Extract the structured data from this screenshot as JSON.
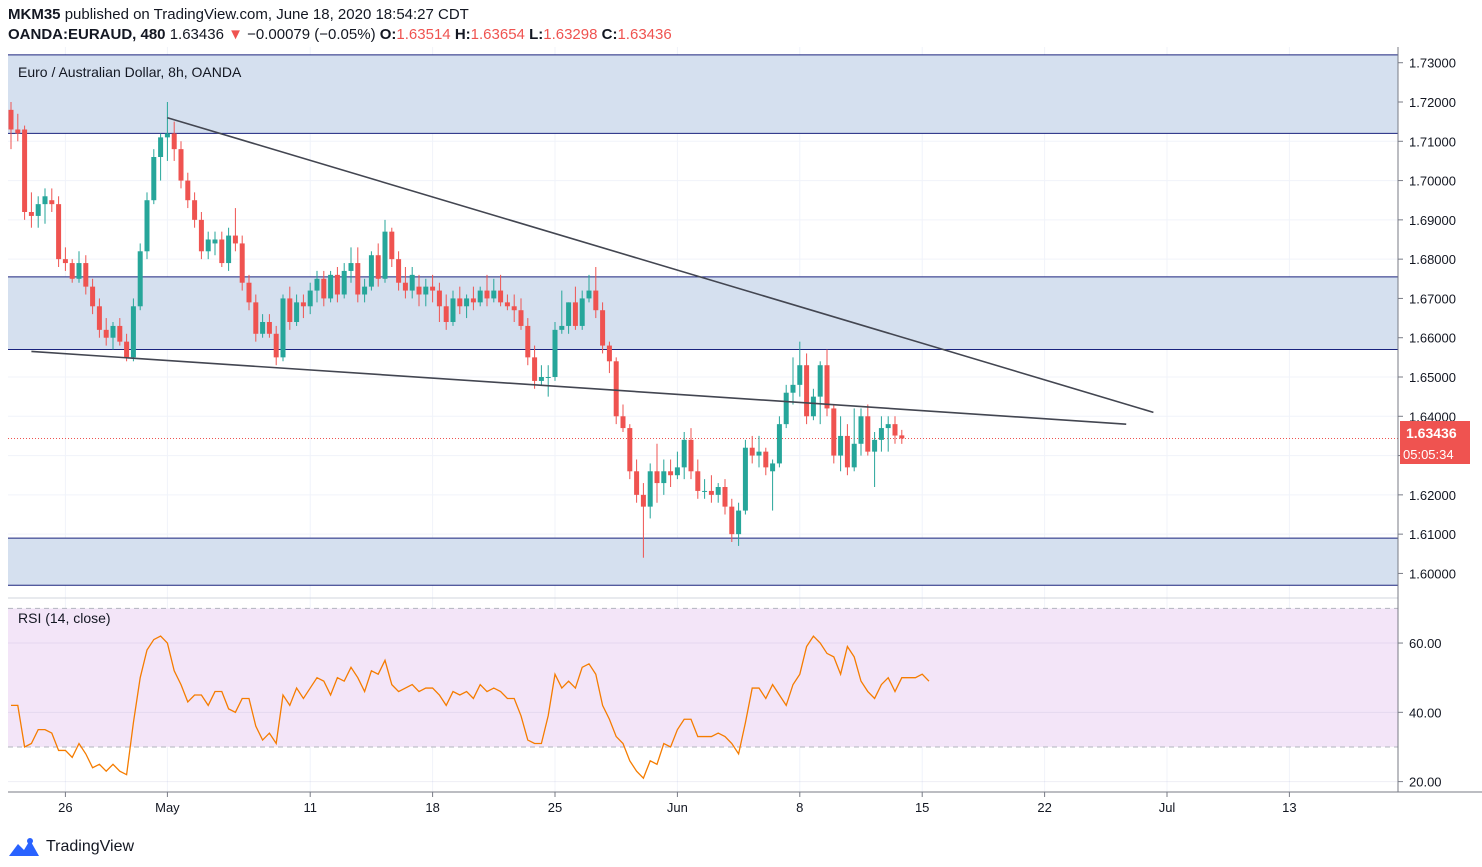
{
  "header": {
    "author": "MKM35",
    "published_text": "published on TradingView.com, June 18, 2020 18:54:27 CDT",
    "symbol": "OANDA:EURAUD, 480",
    "last": "1.63436",
    "change_arrow": "▼",
    "change": "−0.00079 (−0.05%)",
    "o_label": "O:",
    "o": "1.63514",
    "h_label": "H:",
    "h": "1.63654",
    "l_label": "L:",
    "l": "1.63298",
    "c_label": "C:",
    "c": "1.63436"
  },
  "price_pane": {
    "legend": "Euro / Australian Dollar, 8h, OANDA",
    "price_badge": "1.63436",
    "countdown_badge": "05:05:34"
  },
  "rsi_pane": {
    "legend": "RSI (14, close)"
  },
  "brand": {
    "name": "TradingView"
  },
  "colors": {
    "up": "#26a69a",
    "down": "#ef5350",
    "zone_fill": "#d5e0ef",
    "zone_line": "#1a237e",
    "trendline": "#434651",
    "rsi_line": "#f57c00",
    "rsi_band": "#f3e5f8",
    "grid": "#f0f3fa"
  },
  "chart_data": [
    {
      "type": "candlestick",
      "title": "Euro / Australian Dollar, 8h, OANDA",
      "ylim": [
        1.594,
        1.734
      ],
      "y_ticks": [
        "1.60000",
        "1.61000",
        "1.62000",
        "1.63000",
        "1.64000",
        "1.65000",
        "1.66000",
        "1.67000",
        "1.68000",
        "1.69000",
        "1.70000",
        "1.71000",
        "1.72000",
        "1.73000"
      ],
      "x_ticks": [
        {
          "bar": 8,
          "label": "26"
        },
        {
          "bar": 23,
          "label": "May"
        },
        {
          "bar": 44,
          "label": "11"
        },
        {
          "bar": 62,
          "label": "18"
        },
        {
          "bar": 80,
          "label": "25"
        },
        {
          "bar": 98,
          "label": "Jun"
        },
        {
          "bar": 116,
          "label": "8"
        },
        {
          "bar": 134,
          "label": "15"
        },
        {
          "bar": 152,
          "label": "22"
        },
        {
          "bar": 170,
          "label": "Jul"
        },
        {
          "bar": 188,
          "label": "13"
        }
      ],
      "last_price": 1.63436,
      "zones": [
        {
          "from": 1.712,
          "to": 1.732
        },
        {
          "from": 1.657,
          "to": 1.6755
        },
        {
          "from": 1.597,
          "to": 1.609
        }
      ],
      "trendlines": [
        {
          "from": [
            23,
            1.716
          ],
          "to": [
            168,
            1.641
          ]
        },
        {
          "from": [
            3,
            1.6565
          ],
          "to": [
            164,
            1.638
          ]
        }
      ],
      "candles": [
        [
          1.718,
          1.72,
          1.708,
          1.713
        ],
        [
          1.713,
          1.717,
          1.71,
          1.712
        ],
        [
          1.713,
          1.714,
          1.69,
          1.692
        ],
        [
          1.692,
          1.697,
          1.688,
          1.691
        ],
        [
          1.691,
          1.696,
          1.688,
          1.694
        ],
        [
          1.694,
          1.698,
          1.689,
          1.696
        ],
        [
          1.695,
          1.698,
          1.692,
          1.694
        ],
        [
          1.694,
          1.696,
          1.678,
          1.68
        ],
        [
          1.68,
          1.683,
          1.677,
          1.679
        ],
        [
          1.679,
          1.68,
          1.674,
          1.675
        ],
        [
          1.675,
          1.682,
          1.674,
          1.679
        ],
        [
          1.679,
          1.681,
          1.671,
          1.673
        ],
        [
          1.673,
          1.675,
          1.666,
          1.668
        ],
        [
          1.668,
          1.67,
          1.66,
          1.662
        ],
        [
          1.662,
          1.665,
          1.658,
          1.66
        ],
        [
          1.66,
          1.664,
          1.657,
          1.663
        ],
        [
          1.663,
          1.665,
          1.658,
          1.659
        ],
        [
          1.659,
          1.661,
          1.654,
          1.655
        ],
        [
          1.655,
          1.67,
          1.654,
          1.668
        ],
        [
          1.668,
          1.684,
          1.667,
          1.682
        ],
        [
          1.682,
          1.697,
          1.68,
          1.695
        ],
        [
          1.695,
          1.708,
          1.694,
          1.706
        ],
        [
          1.706,
          1.712,
          1.7,
          1.711
        ],
        [
          1.711,
          1.72,
          1.705,
          1.712
        ],
        [
          1.712,
          1.715,
          1.705,
          1.708
        ],
        [
          1.708,
          1.71,
          1.698,
          1.7
        ],
        [
          1.7,
          1.702,
          1.693,
          1.695
        ],
        [
          1.695,
          1.697,
          1.688,
          1.69
        ],
        [
          1.69,
          1.692,
          1.68,
          1.682
        ],
        [
          1.682,
          1.687,
          1.68,
          1.685
        ],
        [
          1.684,
          1.687,
          1.681,
          1.685
        ],
        [
          1.685,
          1.687,
          1.678,
          1.679
        ],
        [
          1.679,
          1.688,
          1.677,
          1.686
        ],
        [
          1.686,
          1.693,
          1.682,
          1.684
        ],
        [
          1.684,
          1.686,
          1.672,
          1.674
        ],
        [
          1.674,
          1.676,
          1.667,
          1.669
        ],
        [
          1.669,
          1.671,
          1.659,
          1.661
        ],
        [
          1.661,
          1.666,
          1.66,
          1.664
        ],
        [
          1.664,
          1.666,
          1.66,
          1.661
        ],
        [
          1.661,
          1.663,
          1.653,
          1.655
        ],
        [
          1.655,
          1.671,
          1.654,
          1.67
        ],
        [
          1.67,
          1.673,
          1.662,
          1.664
        ],
        [
          1.664,
          1.671,
          1.663,
          1.669
        ],
        [
          1.669,
          1.671,
          1.665,
          1.668
        ],
        [
          1.668,
          1.674,
          1.666,
          1.672
        ],
        [
          1.672,
          1.677,
          1.669,
          1.675
        ],
        [
          1.675,
          1.677,
          1.668,
          1.67
        ],
        [
          1.67,
          1.677,
          1.669,
          1.676
        ],
        [
          1.676,
          1.678,
          1.669,
          1.671
        ],
        [
          1.671,
          1.679,
          1.67,
          1.677
        ],
        [
          1.677,
          1.683,
          1.674,
          1.679
        ],
        [
          1.679,
          1.683,
          1.669,
          1.671
        ],
        [
          1.671,
          1.675,
          1.669,
          1.673
        ],
        [
          1.673,
          1.682,
          1.672,
          1.681
        ],
        [
          1.681,
          1.684,
          1.673,
          1.675
        ],
        [
          1.675,
          1.69,
          1.674,
          1.687
        ],
        [
          1.687,
          1.688,
          1.678,
          1.68
        ],
        [
          1.68,
          1.682,
          1.672,
          1.674
        ],
        [
          1.674,
          1.678,
          1.67,
          1.672
        ],
        [
          1.672,
          1.678,
          1.67,
          1.676
        ],
        [
          1.673,
          1.676,
          1.668,
          1.671
        ],
        [
          1.671,
          1.675,
          1.668,
          1.673
        ],
        [
          1.673,
          1.676,
          1.669,
          1.672
        ],
        [
          1.672,
          1.674,
          1.664,
          1.668
        ],
        [
          1.668,
          1.671,
          1.662,
          1.664
        ],
        [
          1.664,
          1.672,
          1.663,
          1.67
        ],
        [
          1.67,
          1.673,
          1.666,
          1.668
        ],
        [
          1.668,
          1.671,
          1.665,
          1.67
        ],
        [
          1.67,
          1.673,
          1.667,
          1.669
        ],
        [
          1.669,
          1.673,
          1.668,
          1.672
        ],
        [
          1.672,
          1.676,
          1.668,
          1.67
        ],
        [
          1.67,
          1.675,
          1.669,
          1.672
        ],
        [
          1.672,
          1.676,
          1.668,
          1.669
        ],
        [
          1.669,
          1.671,
          1.667,
          1.668
        ],
        [
          1.668,
          1.671,
          1.664,
          1.667
        ],
        [
          1.667,
          1.67,
          1.662,
          1.663
        ],
        [
          1.663,
          1.665,
          1.653,
          1.655
        ],
        [
          1.655,
          1.658,
          1.647,
          1.649
        ],
        [
          1.649,
          1.653,
          1.648,
          1.65
        ],
        [
          1.65,
          1.653,
          1.645,
          1.65
        ],
        [
          1.65,
          1.664,
          1.649,
          1.662
        ],
        [
          1.662,
          1.672,
          1.661,
          1.663
        ],
        [
          1.663,
          1.669,
          1.661,
          1.669
        ],
        [
          1.669,
          1.673,
          1.662,
          1.663
        ],
        [
          1.663,
          1.672,
          1.662,
          1.67
        ],
        [
          1.67,
          1.676,
          1.669,
          1.672
        ],
        [
          1.672,
          1.678,
          1.665,
          1.667
        ],
        [
          1.667,
          1.669,
          1.656,
          1.658
        ],
        [
          1.658,
          1.659,
          1.651,
          1.654
        ],
        [
          1.654,
          1.655,
          1.638,
          1.64
        ],
        [
          1.64,
          1.643,
          1.636,
          1.637
        ],
        [
          1.637,
          1.638,
          1.624,
          1.626
        ],
        [
          1.626,
          1.629,
          1.618,
          1.62
        ],
        [
          1.62,
          1.623,
          1.604,
          1.617
        ],
        [
          1.617,
          1.628,
          1.614,
          1.626
        ],
        [
          1.626,
          1.633,
          1.618,
          1.623
        ],
        [
          1.623,
          1.629,
          1.62,
          1.626
        ],
        [
          1.626,
          1.629,
          1.622,
          1.625
        ],
        [
          1.625,
          1.631,
          1.624,
          1.627
        ],
        [
          1.627,
          1.636,
          1.624,
          1.634
        ],
        [
          1.634,
          1.637,
          1.624,
          1.626
        ],
        [
          1.626,
          1.629,
          1.619,
          1.621
        ],
        [
          1.621,
          1.624,
          1.619,
          1.621
        ],
        [
          1.621,
          1.625,
          1.618,
          1.62
        ],
        [
          1.62,
          1.623,
          1.618,
          1.622
        ],
        [
          1.622,
          1.624,
          1.615,
          1.617
        ],
        [
          1.617,
          1.619,
          1.608,
          1.61
        ],
        [
          1.61,
          1.618,
          1.607,
          1.616
        ],
        [
          1.616,
          1.634,
          1.615,
          1.632
        ],
        [
          1.632,
          1.635,
          1.628,
          1.63
        ],
        [
          1.63,
          1.635,
          1.627,
          1.631
        ],
        [
          1.631,
          1.632,
          1.625,
          1.627
        ],
        [
          1.626,
          1.629,
          1.616,
          1.628
        ],
        [
          1.628,
          1.64,
          1.627,
          1.638
        ],
        [
          1.638,
          1.648,
          1.637,
          1.646
        ],
        [
          1.646,
          1.655,
          1.643,
          1.648
        ],
        [
          1.648,
          1.659,
          1.645,
          1.653
        ],
        [
          1.653,
          1.656,
          1.638,
          1.64
        ],
        [
          1.64,
          1.647,
          1.639,
          1.645
        ],
        [
          1.645,
          1.654,
          1.638,
          1.653
        ],
        [
          1.653,
          1.657,
          1.64,
          1.642
        ],
        [
          1.642,
          1.643,
          1.628,
          1.63
        ],
        [
          1.63,
          1.64,
          1.626,
          1.635
        ],
        [
          1.635,
          1.638,
          1.625,
          1.627
        ],
        [
          1.627,
          1.642,
          1.626,
          1.633
        ],
        [
          1.633,
          1.642,
          1.63,
          1.64
        ],
        [
          1.64,
          1.643,
          1.63,
          1.631
        ],
        [
          1.631,
          1.636,
          1.622,
          1.634
        ],
        [
          1.634,
          1.64,
          1.631,
          1.637
        ],
        [
          1.637,
          1.64,
          1.631,
          1.638
        ],
        [
          1.638,
          1.64,
          1.633,
          1.6351
        ],
        [
          1.63514,
          1.63654,
          1.63298,
          1.63436
        ]
      ]
    },
    {
      "type": "line",
      "title": "RSI (14, close)",
      "ylim": [
        17,
        73
      ],
      "bands": [
        30,
        70
      ],
      "y_ticks": [
        "20.00",
        "40.00",
        "60.00"
      ],
      "series": [
        {
          "values": [
            42,
            42,
            30,
            31,
            35,
            35,
            34,
            29,
            29,
            27,
            31,
            28,
            24,
            25,
            23,
            25,
            23,
            22,
            37,
            50,
            58,
            61,
            62,
            60,
            52,
            48,
            43,
            45,
            45,
            42,
            46,
            46,
            41,
            40,
            44,
            44,
            36,
            32,
            34,
            31,
            45,
            42,
            47,
            44,
            47,
            50,
            49,
            45,
            50,
            49,
            53,
            50,
            46,
            52,
            51,
            55,
            48,
            46,
            47,
            48,
            46,
            47,
            47,
            45,
            42,
            46,
            45,
            46,
            44,
            48,
            46,
            47,
            46,
            44,
            44,
            39,
            32,
            31,
            31,
            39,
            51,
            47,
            49,
            47,
            53,
            54,
            51,
            42,
            38,
            33,
            31,
            26,
            23,
            21,
            26,
            25,
            31,
            30,
            35,
            38,
            38,
            33,
            33,
            33,
            34,
            33,
            31,
            28,
            37,
            47,
            47,
            44,
            48,
            45,
            42,
            48,
            51,
            59,
            62,
            60,
            57,
            56,
            51,
            59,
            56,
            49,
            46,
            44,
            48,
            50,
            46,
            50,
            50,
            50,
            51,
            49
          ]
        }
      ]
    }
  ]
}
